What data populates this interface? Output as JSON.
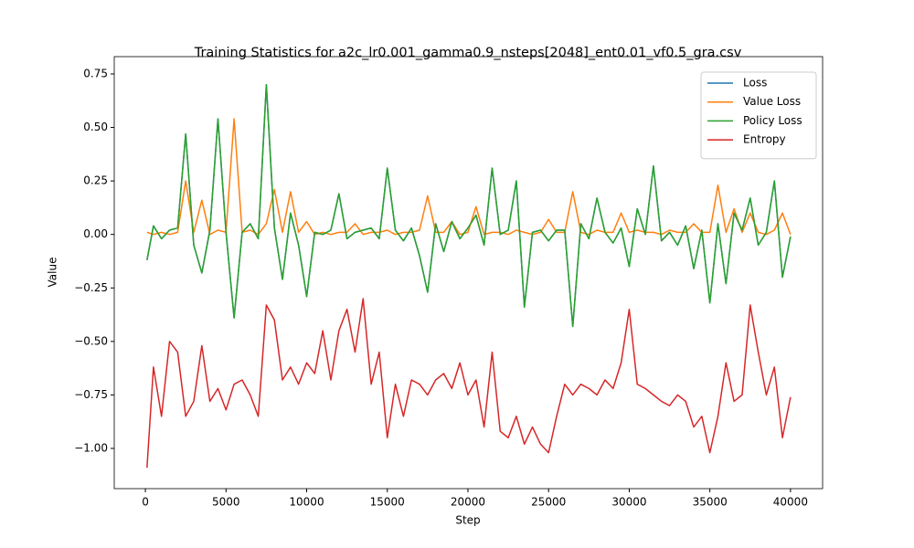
{
  "chart_data": {
    "type": "line",
    "title": "Training Statistics for a2c_lr0.001_gamma0.9_nsteps[2048]_ent0.01_vf0.5_gra.csv",
    "xlabel": "Step",
    "ylabel": "Value",
    "x": [
      100,
      500,
      1000,
      1500,
      2000,
      2500,
      3000,
      3500,
      4000,
      4500,
      5000,
      5500,
      6000,
      6500,
      7000,
      7500,
      8000,
      8500,
      9000,
      9500,
      10000,
      10500,
      11000,
      11500,
      12000,
      12500,
      13000,
      13500,
      14000,
      14500,
      15000,
      15500,
      16000,
      16500,
      17000,
      17500,
      18000,
      18500,
      19000,
      19500,
      20000,
      20500,
      21000,
      21500,
      22000,
      22500,
      23000,
      23500,
      24000,
      24500,
      25000,
      25500,
      26000,
      26500,
      27000,
      27500,
      28000,
      28500,
      29000,
      29500,
      30000,
      30500,
      31000,
      31500,
      32000,
      32500,
      33000,
      33500,
      34000,
      34500,
      35000,
      35500,
      36000,
      36500,
      37000,
      37500,
      38000,
      38500,
      39000,
      39500,
      40000
    ],
    "series": [
      {
        "name": "Loss",
        "color": "#1f77b4",
        "values": [
          -0.12,
          0.04,
          -0.02,
          0.02,
          0.03,
          0.47,
          -0.05,
          -0.18,
          0.02,
          0.54,
          0.01,
          -0.39,
          0.01,
          0.05,
          -0.02,
          0.7,
          0.03,
          -0.21,
          0.1,
          -0.05,
          -0.29,
          0.01,
          0,
          0.02,
          0.19,
          -0.02,
          0.01,
          0.02,
          0.03,
          -0.02,
          0.31,
          0.02,
          -0.03,
          0.03,
          -0.1,
          -0.27,
          0.05,
          -0.08,
          0.06,
          -0.02,
          0.03,
          0.09,
          -0.05,
          0.31,
          0,
          0.02,
          0.25,
          -0.34,
          0.01,
          0.02,
          -0.03,
          0.02,
          0.02,
          -0.43,
          0.05,
          -0.02,
          0.17,
          0.01,
          -0.04,
          0.03,
          -0.15,
          0.12,
          0,
          0.32,
          -0.03,
          0.01,
          -0.05,
          0.04,
          -0.16,
          0.02,
          -0.32,
          0.05,
          -0.23,
          0.1,
          0.02,
          0.17,
          -0.05,
          0.01,
          0.25,
          -0.2,
          -0.01
        ]
      },
      {
        "name": "Value Loss",
        "color": "#ff7f0e",
        "values": [
          0.01,
          0,
          0.01,
          0,
          0.01,
          0.25,
          0.01,
          0.16,
          0,
          0.02,
          0.01,
          0.54,
          0.01,
          0.02,
          0,
          0.05,
          0.21,
          0.01,
          0.2,
          0.01,
          0.06,
          0,
          0.01,
          0,
          0.01,
          0.01,
          0.05,
          0,
          0.01,
          0.01,
          0.02,
          0,
          0.01,
          0.01,
          0.02,
          0.18,
          0.01,
          0.01,
          0.06,
          0,
          0.01,
          0.13,
          0,
          0.01,
          0.01,
          0,
          0.02,
          0.01,
          0,
          0.01,
          0.07,
          0.01,
          0.01,
          0.2,
          0.01,
          0,
          0.02,
          0.01,
          0.01,
          0.1,
          0.01,
          0.02,
          0.01,
          0.01,
          0,
          0.02,
          0.01,
          0.01,
          0.05,
          0.01,
          0.01,
          0.23,
          0.01,
          0.12,
          0.01,
          0.1,
          0.01,
          0,
          0.02,
          0.1,
          0
        ]
      },
      {
        "name": "Policy Loss",
        "color": "#2ca02c",
        "values": [
          -0.12,
          0.04,
          -0.02,
          0.02,
          0.03,
          0.47,
          -0.05,
          -0.18,
          0.02,
          0.54,
          0.01,
          -0.39,
          0.01,
          0.05,
          -0.02,
          0.7,
          0.03,
          -0.21,
          0.1,
          -0.05,
          -0.29,
          0.01,
          0,
          0.02,
          0.19,
          -0.02,
          0.01,
          0.02,
          0.03,
          -0.02,
          0.31,
          0.02,
          -0.03,
          0.03,
          -0.1,
          -0.27,
          0.05,
          -0.08,
          0.06,
          -0.02,
          0.03,
          0.09,
          -0.05,
          0.31,
          0,
          0.02,
          0.25,
          -0.34,
          0.01,
          0.02,
          -0.03,
          0.02,
          0.02,
          -0.43,
          0.05,
          -0.02,
          0.17,
          0.01,
          -0.04,
          0.03,
          -0.15,
          0.12,
          0,
          0.32,
          -0.03,
          0.01,
          -0.05,
          0.04,
          -0.16,
          0.02,
          -0.32,
          0.05,
          -0.23,
          0.1,
          0.02,
          0.17,
          -0.05,
          0.01,
          0.25,
          -0.2,
          -0.01
        ]
      },
      {
        "name": "Entropy",
        "color": "#d62728",
        "values": [
          -1.09,
          -0.62,
          -0.85,
          -0.5,
          -0.55,
          -0.85,
          -0.78,
          -0.52,
          -0.78,
          -0.72,
          -0.82,
          -0.7,
          -0.68,
          -0.75,
          -0.85,
          -0.33,
          -0.4,
          -0.68,
          -0.62,
          -0.7,
          -0.6,
          -0.65,
          -0.45,
          -0.68,
          -0.45,
          -0.35,
          -0.55,
          -0.3,
          -0.7,
          -0.55,
          -0.95,
          -0.7,
          -0.85,
          -0.68,
          -0.7,
          -0.75,
          -0.68,
          -0.65,
          -0.72,
          -0.6,
          -0.75,
          -0.68,
          -0.9,
          -0.55,
          -0.92,
          -0.95,
          -0.85,
          -0.98,
          -0.9,
          -0.98,
          -1.02,
          -0.85,
          -0.7,
          -0.75,
          -0.7,
          -0.72,
          -0.75,
          -0.68,
          -0.72,
          -0.6,
          -0.35,
          -0.7,
          -0.72,
          -0.75,
          -0.78,
          -0.8,
          -0.75,
          -0.78,
          -0.9,
          -0.85,
          -1.02,
          -0.85,
          -0.6,
          -0.78,
          -0.75,
          -0.33,
          -0.55,
          -0.75,
          -0.62,
          -0.95,
          -0.76
        ]
      }
    ],
    "xlim": [
      -1930,
      41990
    ],
    "ylim": [
      -1.188,
      0.831
    ],
    "xticks": [
      0,
      5000,
      10000,
      15000,
      20000,
      25000,
      30000,
      35000,
      40000
    ],
    "yticks": [
      {
        "value": -1,
        "label": "−1.00"
      },
      {
        "value": -0.75,
        "label": "−0.75"
      },
      {
        "value": -0.5,
        "label": "−0.50"
      },
      {
        "value": -0.25,
        "label": "−0.25"
      },
      {
        "value": 0,
        "label": "0.00"
      },
      {
        "value": 0.25,
        "label": "0.25"
      },
      {
        "value": 0.5,
        "label": "0.50"
      },
      {
        "value": 0.75,
        "label": "0.75"
      }
    ],
    "legend": "upper right"
  }
}
